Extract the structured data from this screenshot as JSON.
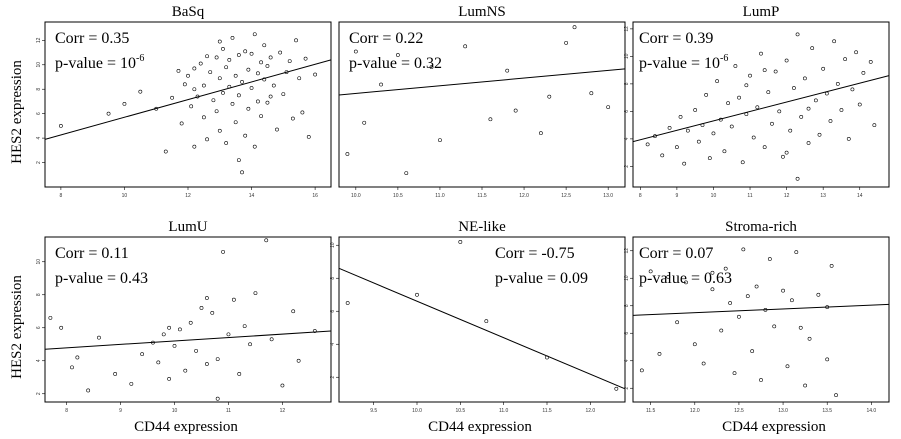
{
  "figure": {
    "ylabel": "HES2 expression",
    "xlabel": "CD44 expression"
  },
  "chart_data": [
    {
      "type": "scatter",
      "title": "BaSq",
      "stats": {
        "corr": "Corr = 0.35",
        "pvalue": "p-value = 10",
        "pvalue_sup": "-6"
      },
      "xlim": [
        7.5,
        16.5
      ],
      "ylim": [
        0,
        13.5
      ],
      "xticks": [
        "8",
        "10",
        "12",
        "14",
        "16"
      ],
      "yticks": [
        "2",
        "4",
        "6",
        "8",
        "10",
        "12"
      ],
      "trend": [
        [
          7.5,
          3.9
        ],
        [
          16.5,
          10.4
        ]
      ],
      "points": [
        [
          8.0,
          5.0
        ],
        [
          9.5,
          6.0
        ],
        [
          10.0,
          6.8
        ],
        [
          10.5,
          7.8
        ],
        [
          11.0,
          6.4
        ],
        [
          11.3,
          2.9
        ],
        [
          11.5,
          7.3
        ],
        [
          11.8,
          5.2
        ],
        [
          11.9,
          8.4
        ],
        [
          12.0,
          9.1
        ],
        [
          12.1,
          6.6
        ],
        [
          12.2,
          3.3
        ],
        [
          12.2,
          9.7
        ],
        [
          12.3,
          7.4
        ],
        [
          12.4,
          10.1
        ],
        [
          12.5,
          8.3
        ],
        [
          12.5,
          5.7
        ],
        [
          12.6,
          3.9
        ],
        [
          12.7,
          9.4
        ],
        [
          12.8,
          7.1
        ],
        [
          12.9,
          10.6
        ],
        [
          12.9,
          6.2
        ],
        [
          13.0,
          8.9
        ],
        [
          13.0,
          4.6
        ],
        [
          13.1,
          11.3
        ],
        [
          13.1,
          7.7
        ],
        [
          13.2,
          9.8
        ],
        [
          13.2,
          3.6
        ],
        [
          13.3,
          8.2
        ],
        [
          13.3,
          10.4
        ],
        [
          13.4,
          6.8
        ],
        [
          13.4,
          12.2
        ],
        [
          13.5,
          9.1
        ],
        [
          13.5,
          5.3
        ],
        [
          13.6,
          10.8
        ],
        [
          13.6,
          7.5
        ],
        [
          13.7,
          8.6
        ],
        [
          13.7,
          1.2
        ],
        [
          13.8,
          11.1
        ],
        [
          13.8,
          4.2
        ],
        [
          13.9,
          9.6
        ],
        [
          13.9,
          6.4
        ],
        [
          14.0,
          10.9
        ],
        [
          14.0,
          8.1
        ],
        [
          14.1,
          12.5
        ],
        [
          14.1,
          3.3
        ],
        [
          14.2,
          9.3
        ],
        [
          14.2,
          7.0
        ],
        [
          14.3,
          10.2
        ],
        [
          14.3,
          5.8
        ],
        [
          14.4,
          8.8
        ],
        [
          14.4,
          11.6
        ],
        [
          14.5,
          9.9
        ],
        [
          14.5,
          6.9
        ],
        [
          14.6,
          10.6
        ],
        [
          14.7,
          8.3
        ],
        [
          14.8,
          4.7
        ],
        [
          14.9,
          11.0
        ],
        [
          15.0,
          7.6
        ],
        [
          15.1,
          9.4
        ],
        [
          15.2,
          10.3
        ],
        [
          15.3,
          5.6
        ],
        [
          15.4,
          12.0
        ],
        [
          15.5,
          8.9
        ],
        [
          15.6,
          6.1
        ],
        [
          15.7,
          10.5
        ],
        [
          15.8,
          4.1
        ],
        [
          16.0,
          9.2
        ],
        [
          12.6,
          10.7
        ],
        [
          13.0,
          11.9
        ],
        [
          12.2,
          8.0
        ],
        [
          11.7,
          9.5
        ],
        [
          14.6,
          7.4
        ],
        [
          13.6,
          2.2
        ]
      ]
    },
    {
      "type": "scatter",
      "title": "LumNS",
      "stats": {
        "corr": "Corr = 0.22",
        "pvalue": "p-value = 0.32"
      },
      "xlim": [
        9.8,
        13.2
      ],
      "ylim": [
        1.5,
        11
      ],
      "xticks": [
        "10.0",
        "10.5",
        "11.0",
        "11.5",
        "12.0",
        "12.5",
        "13.0"
      ],
      "yticks": [],
      "trend": [
        [
          9.8,
          6.8
        ],
        [
          13.2,
          8.3
        ]
      ],
      "points": [
        [
          9.9,
          3.4
        ],
        [
          10.0,
          9.3
        ],
        [
          10.1,
          5.2
        ],
        [
          10.3,
          7.4
        ],
        [
          10.5,
          9.1
        ],
        [
          10.6,
          2.3
        ],
        [
          10.9,
          8.4
        ],
        [
          11.0,
          4.2
        ],
        [
          11.3,
          9.6
        ],
        [
          11.6,
          5.4
        ],
        [
          11.8,
          8.2
        ],
        [
          11.9,
          5.9
        ],
        [
          12.2,
          4.6
        ],
        [
          12.3,
          6.7
        ],
        [
          12.5,
          9.8
        ],
        [
          12.6,
          10.7
        ],
        [
          12.8,
          6.9
        ],
        [
          13.0,
          6.1
        ]
      ]
    },
    {
      "type": "scatter",
      "title": "LumP",
      "stats": {
        "corr": "Corr = 0.39",
        "pvalue": "p-value = 10",
        "pvalue_sup": "-6"
      },
      "xlim": [
        7.8,
        14.8
      ],
      "ylim": [
        0.5,
        12.5
      ],
      "xticks": [
        "8",
        "9",
        "10",
        "11",
        "12",
        "13",
        "14"
      ],
      "yticks": [
        "2",
        "4",
        "6",
        "8",
        "10",
        "12"
      ],
      "trend": [
        [
          7.8,
          3.8
        ],
        [
          14.8,
          8.6
        ]
      ],
      "points": [
        [
          8.2,
          3.6
        ],
        [
          8.4,
          4.2
        ],
        [
          8.6,
          2.8
        ],
        [
          8.8,
          4.8
        ],
        [
          9.0,
          3.4
        ],
        [
          9.1,
          5.6
        ],
        [
          9.2,
          2.2
        ],
        [
          9.3,
          4.6
        ],
        [
          9.5,
          6.1
        ],
        [
          9.6,
          3.8
        ],
        [
          9.7,
          5.0
        ],
        [
          9.8,
          7.2
        ],
        [
          9.9,
          2.6
        ],
        [
          10.0,
          4.4
        ],
        [
          10.1,
          8.2
        ],
        [
          10.2,
          5.4
        ],
        [
          10.3,
          3.1
        ],
        [
          10.4,
          6.6
        ],
        [
          10.5,
          4.9
        ],
        [
          10.6,
          9.3
        ],
        [
          10.7,
          7.0
        ],
        [
          10.8,
          2.3
        ],
        [
          10.9,
          5.8
        ],
        [
          11.0,
          8.6
        ],
        [
          11.1,
          4.1
        ],
        [
          11.2,
          6.3
        ],
        [
          11.3,
          10.2
        ],
        [
          11.4,
          3.4
        ],
        [
          11.5,
          7.4
        ],
        [
          11.6,
          5.1
        ],
        [
          11.7,
          8.9
        ],
        [
          11.8,
          6.0
        ],
        [
          11.9,
          2.7
        ],
        [
          12.0,
          9.7
        ],
        [
          12.1,
          4.6
        ],
        [
          12.2,
          7.7
        ],
        [
          12.3,
          1.1
        ],
        [
          12.3,
          11.6
        ],
        [
          12.4,
          5.6
        ],
        [
          12.5,
          8.4
        ],
        [
          12.6,
          3.7
        ],
        [
          12.7,
          10.6
        ],
        [
          12.8,
          6.8
        ],
        [
          12.9,
          4.3
        ],
        [
          13.0,
          9.1
        ],
        [
          13.1,
          7.3
        ],
        [
          13.2,
          5.3
        ],
        [
          13.3,
          11.1
        ],
        [
          13.4,
          8.0
        ],
        [
          13.5,
          6.1
        ],
        [
          13.6,
          9.8
        ],
        [
          13.7,
          4.0
        ],
        [
          13.8,
          7.6
        ],
        [
          13.9,
          10.3
        ],
        [
          14.0,
          6.5
        ],
        [
          14.1,
          8.8
        ],
        [
          14.3,
          9.6
        ],
        [
          14.4,
          5.0
        ],
        [
          11.4,
          9.0
        ],
        [
          12.0,
          3.0
        ],
        [
          10.9,
          7.9
        ],
        [
          12.6,
          6.2
        ]
      ]
    },
    {
      "type": "scatter",
      "title": "LumU",
      "stats": {
        "corr": "Corr = 0.11",
        "pvalue": "p-value = 0.43"
      },
      "xlim": [
        7.6,
        12.9
      ],
      "ylim": [
        1.5,
        11.5
      ],
      "xticks": [
        "8",
        "9",
        "10",
        "11",
        "12"
      ],
      "yticks": [
        "2",
        "4",
        "6",
        "8",
        "10"
      ],
      "trend": [
        [
          7.6,
          4.7
        ],
        [
          12.9,
          5.8
        ]
      ],
      "points": [
        [
          7.7,
          6.6
        ],
        [
          7.9,
          6.0
        ],
        [
          8.1,
          3.6
        ],
        [
          8.2,
          4.2
        ],
        [
          8.4,
          2.2
        ],
        [
          8.6,
          5.4
        ],
        [
          8.9,
          3.2
        ],
        [
          9.2,
          2.6
        ],
        [
          9.4,
          4.4
        ],
        [
          9.6,
          5.1
        ],
        [
          9.7,
          3.9
        ],
        [
          9.8,
          5.6
        ],
        [
          9.9,
          2.9
        ],
        [
          10.0,
          4.9
        ],
        [
          10.1,
          5.9
        ],
        [
          10.2,
          3.4
        ],
        [
          10.3,
          6.3
        ],
        [
          10.4,
          4.6
        ],
        [
          10.5,
          7.2
        ],
        [
          10.6,
          3.8
        ],
        [
          10.7,
          6.9
        ],
        [
          10.8,
          4.1
        ],
        [
          10.8,
          1.7
        ],
        [
          10.9,
          10.6
        ],
        [
          11.0,
          5.6
        ],
        [
          11.1,
          7.7
        ],
        [
          11.2,
          3.2
        ],
        [
          11.3,
          6.1
        ],
        [
          11.4,
          5.0
        ],
        [
          11.5,
          8.1
        ],
        [
          11.7,
          11.3
        ],
        [
          11.8,
          5.3
        ],
        [
          12.0,
          2.5
        ],
        [
          12.2,
          7.0
        ],
        [
          12.3,
          4.0
        ],
        [
          12.6,
          5.8
        ],
        [
          10.6,
          7.8
        ],
        [
          9.9,
          6.0
        ]
      ]
    },
    {
      "type": "scatter",
      "title": "NE-like",
      "stats": {
        "corr": "Corr = -0.75",
        "pvalue": "p-value = 0.09"
      },
      "xlim": [
        9.1,
        12.4
      ],
      "ylim": [
        0.5,
        10.5
      ],
      "xticks": [
        "9.5",
        "10.0",
        "10.5",
        "11.0",
        "11.5",
        "12.0"
      ],
      "yticks": [
        "2",
        "4",
        "6",
        "8",
        "10"
      ],
      "trend": [
        [
          9.1,
          8.6
        ],
        [
          12.4,
          1.3
        ]
      ],
      "points": [
        [
          9.2,
          6.5
        ],
        [
          10.0,
          7.0
        ],
        [
          10.5,
          10.2
        ],
        [
          10.8,
          5.4
        ],
        [
          11.5,
          3.2
        ],
        [
          12.3,
          1.3
        ]
      ]
    },
    {
      "type": "scatter",
      "title": "Stroma-rich",
      "stats": {
        "corr": "Corr = 0.07",
        "pvalue": "p-value = 0.63"
      },
      "xlim": [
        11.3,
        14.2
      ],
      "ylim": [
        1,
        13
      ],
      "xticks": [
        "11.5",
        "12.0",
        "12.5",
        "13.0",
        "13.5",
        "14.0"
      ],
      "yticks": [
        "2",
        "4",
        "6",
        "8",
        "10",
        "12"
      ],
      "trend": [
        [
          11.3,
          7.3
        ],
        [
          14.2,
          8.1
        ]
      ],
      "points": [
        [
          11.4,
          3.3
        ],
        [
          11.5,
          10.5
        ],
        [
          11.6,
          4.5
        ],
        [
          11.7,
          10.1
        ],
        [
          11.8,
          6.8
        ],
        [
          11.9,
          9.7
        ],
        [
          12.0,
          5.2
        ],
        [
          12.1,
          3.8
        ],
        [
          12.2,
          9.2
        ],
        [
          12.3,
          6.2
        ],
        [
          12.35,
          10.7
        ],
        [
          12.4,
          8.2
        ],
        [
          12.45,
          3.1
        ],
        [
          12.5,
          7.2
        ],
        [
          12.55,
          12.1
        ],
        [
          12.6,
          8.7
        ],
        [
          12.65,
          4.7
        ],
        [
          12.7,
          9.4
        ],
        [
          12.75,
          2.6
        ],
        [
          12.8,
          7.7
        ],
        [
          12.85,
          11.4
        ],
        [
          12.9,
          6.5
        ],
        [
          13.0,
          9.1
        ],
        [
          13.05,
          3.6
        ],
        [
          13.1,
          8.4
        ],
        [
          13.15,
          11.9
        ],
        [
          13.2,
          6.4
        ],
        [
          13.25,
          2.2
        ],
        [
          13.3,
          5.6
        ],
        [
          13.4,
          8.8
        ],
        [
          13.5,
          4.1
        ],
        [
          13.55,
          10.9
        ],
        [
          13.6,
          1.5
        ],
        [
          13.5,
          7.9
        ],
        [
          12.2,
          10.4
        ]
      ]
    }
  ]
}
